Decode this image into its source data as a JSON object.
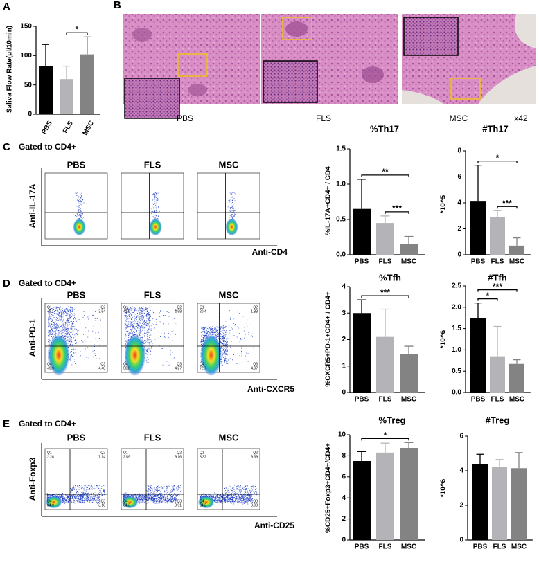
{
  "panel_labels": [
    "A",
    "B",
    "C",
    "D",
    "E"
  ],
  "histology": {
    "labels": [
      "PBS",
      "FLS",
      "MSC"
    ],
    "magnification": "x42"
  },
  "flow": [
    {
      "gate": "Gated to CD4+",
      "y_label": "Anti-IL-17A",
      "x_label": "Anti-CD4",
      "groups": [
        "PBS",
        "FLS",
        "MSC"
      ]
    },
    {
      "gate": "Gated to CD4+",
      "y_label": "Anti-PD-1",
      "x_label": "Anti-CXCR5",
      "groups": [
        "PBS",
        "FLS",
        "MSC"
      ],
      "quadrants": [
        [
          {
            "name": "Q1",
            "value": 42.1
          },
          {
            "name": "Q2",
            "value": 3.54
          },
          {
            "name": "Q3",
            "value": 4.48
          },
          {
            "name": "Q4",
            "value": 49.9
          }
        ],
        [
          {
            "name": "Q1",
            "value": 41.9
          },
          {
            "name": "Q2",
            "value": 2.98
          },
          {
            "name": "Q3",
            "value": 4.27
          },
          {
            "name": "Q4",
            "value": 50.8
          }
        ],
        [
          {
            "name": "Q1",
            "value": 20.4
          },
          {
            "name": "Q2",
            "value": 1.88
          },
          {
            "name": "Q3",
            "value": 4.97
          },
          {
            "name": "Q4",
            "value": 72.7
          }
        ]
      ]
    },
    {
      "gate": "Gated to CD4+",
      "y_label": "Anti-Foxp3",
      "x_label": "Anti-CD25",
      "groups": [
        "PBS",
        "FLS",
        "MSC"
      ],
      "quadrants": [
        [
          {
            "name": "Q1",
            "value": 2.28
          },
          {
            "name": "Q2",
            "value": 7.14
          },
          {
            "name": "Q3",
            "value": 3.18
          },
          {
            "name": "Q4",
            "value": 84.9
          }
        ],
        [
          {
            "name": "Q1",
            "value": 2.59
          },
          {
            "name": "Q2",
            "value": 9.16
          },
          {
            "name": "Q3",
            "value": 3.91
          },
          {
            "name": "Q4",
            "value": 84.3
          }
        ],
        [
          {
            "name": "Q1",
            "value": 3.32
          },
          {
            "name": "Q2",
            "value": 9.39
          },
          {
            "name": "Q3",
            "value": 3.08
          },
          {
            "name": "Q4",
            "value": 84.2
          }
        ]
      ]
    }
  ],
  "chart_data": [
    {
      "type": "bar",
      "y_label": "Saliva Flow Rate(μl/10min)",
      "categories": [
        "PBS",
        "FLS",
        "MSC"
      ],
      "values": [
        82,
        60,
        102
      ],
      "errors": [
        37,
        22,
        30
      ],
      "colors": [
        "#000000",
        "#b4b4b8",
        "#838383"
      ],
      "ylim": [
        0,
        150
      ],
      "yticks": [
        0,
        50,
        100,
        150
      ],
      "significance": [
        {
          "pair": [
            "FLS",
            "MSC"
          ],
          "label": "*"
        }
      ]
    },
    {
      "type": "bar",
      "title": "%Th17",
      "y_label": "%IL-17A+CD4+ / CD4",
      "categories": [
        "PBS",
        "FLS",
        "MSC"
      ],
      "values": [
        0.65,
        0.45,
        0.15
      ],
      "errors": [
        0.42,
        0.1,
        0.11
      ],
      "colors": [
        "#000000",
        "#b4b4b8",
        "#838383"
      ],
      "ylim": [
        0,
        1.5
      ],
      "yticks": [
        {
          "value": 0,
          "label": "0.0"
        },
        0.5,
        {
          "value": 1,
          "label": "1.0"
        },
        1.5
      ],
      "significance": [
        {
          "pair": [
            "FLS",
            "MSC"
          ],
          "label": "***"
        },
        {
          "pair": [
            "PBS",
            "MSC"
          ],
          "label": "**"
        }
      ]
    },
    {
      "type": "bar",
      "title": "#Th17",
      "y_label": "*10^5",
      "categories": [
        "PBS",
        "FLS",
        "MSC"
      ],
      "values": [
        4.1,
        2.9,
        0.7
      ],
      "errors": [
        2.8,
        0.5,
        0.6
      ],
      "colors": [
        "#000000",
        "#b4b4b8",
        "#838383"
      ],
      "ylim": [
        0,
        8
      ],
      "yticks": [
        0,
        2,
        4,
        6,
        8
      ],
      "significance": [
        {
          "pair": [
            "FLS",
            "MSC"
          ],
          "label": "***"
        },
        {
          "pair": [
            "PBS",
            "MSC"
          ],
          "label": "*"
        }
      ]
    },
    {
      "type": "bar",
      "title": "%Tfh",
      "y_label": "%CXCR5+PD-1+CD4+ / CD4+",
      "categories": [
        "PBS",
        "FLS",
        "MSC"
      ],
      "values": [
        3.0,
        2.1,
        1.45
      ],
      "errors": [
        0.5,
        1.05,
        0.3
      ],
      "colors": [
        "#000000",
        "#b4b4b8",
        "#838383"
      ],
      "ylim": [
        0,
        4
      ],
      "yticks": [
        0,
        1,
        2,
        3,
        4
      ],
      "significance": [
        {
          "pair": [
            "PBS",
            "MSC"
          ],
          "label": "***"
        }
      ]
    },
    {
      "type": "bar",
      "title": "#Tfh",
      "y_label": "*10^6",
      "categories": [
        "PBS",
        "FLS",
        "MSC"
      ],
      "values": [
        1.75,
        0.85,
        0.67
      ],
      "errors": [
        0.35,
        0.7,
        0.1
      ],
      "colors": [
        "#000000",
        "#b4b4b8",
        "#838383"
      ],
      "ylim": [
        0,
        2.5
      ],
      "yticks": [
        {
          "value": 0,
          "label": "0.0"
        },
        0.5,
        {
          "value": 1,
          "label": "1.0"
        },
        1.5,
        {
          "value": 2,
          "label": "2.0"
        },
        2.5
      ],
      "significance": [
        {
          "pair": [
            "PBS",
            "FLS"
          ],
          "label": "*"
        },
        {
          "pair": [
            "PBS",
            "MSC"
          ],
          "label": "***"
        }
      ]
    },
    {
      "type": "bar",
      "title": "%Treg",
      "y_label": "%CD25+Foxp3+CD4+/CD4+",
      "categories": [
        "PBS",
        "FLS",
        "MSC"
      ],
      "values": [
        7.5,
        8.3,
        8.75
      ],
      "errors": [
        0.9,
        0.9,
        0.5
      ],
      "colors": [
        "#000000",
        "#b4b4b8",
        "#838383"
      ],
      "ylim": [
        0,
        10
      ],
      "yticks": [
        0,
        2,
        4,
        6,
        8,
        10
      ],
      "significance": [
        {
          "pair": [
            "PBS",
            "MSC"
          ],
          "label": "*"
        }
      ]
    },
    {
      "type": "bar",
      "title": "#Treg",
      "y_label": "*10^6",
      "categories": [
        "PBS",
        "FLS",
        "MSC"
      ],
      "values": [
        4.4,
        4.2,
        4.15
      ],
      "errors": [
        0.55,
        0.45,
        0.9
      ],
      "colors": [
        "#000000",
        "#b4b4b8",
        "#838383"
      ],
      "ylim": [
        0,
        6
      ],
      "yticks": [
        0,
        2,
        4,
        6
      ],
      "significance": []
    }
  ]
}
